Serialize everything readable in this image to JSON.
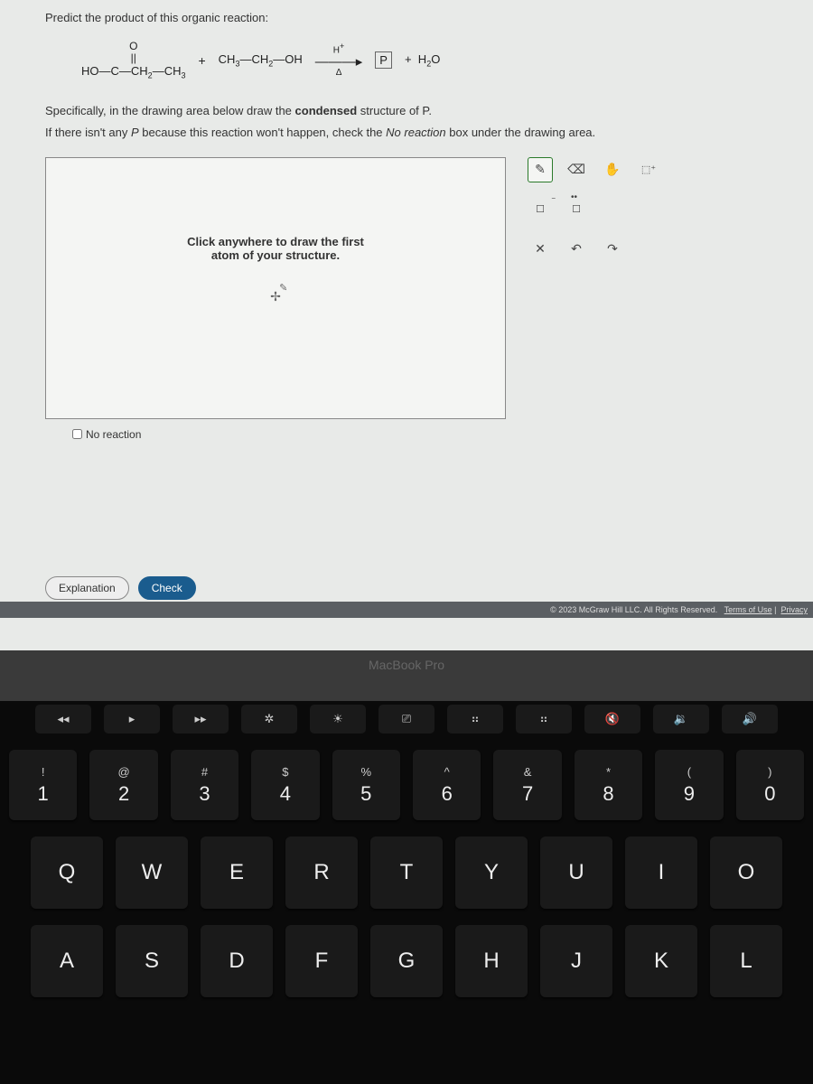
{
  "question": {
    "title": "Predict the product of this organic reaction:",
    "reactant1_top_O": "O",
    "reactant1_dbl": "||",
    "reactant1": "HO — C — CH₂ — CH₃",
    "plus1": "+",
    "reactant2": "CH₃ — CH₂ — OH",
    "arrow_top": "H⁺",
    "arrow": "———▸",
    "arrow_bot": "Δ",
    "product_p": "P",
    "plus2": "+",
    "water": "H₂O",
    "instruction1": "Specifically, in the drawing area below draw the ",
    "instruction1_bold": "condensed",
    "instruction1_tail": " structure of P.",
    "instruction2_head": "If there isn't any ",
    "instruction2_ital": "P",
    "instruction2_mid": " because this reaction won't happen, check the ",
    "instruction2_ital2": "No reaction",
    "instruction2_tail": " box under the drawing area."
  },
  "canvas": {
    "hint_line1": "Click anywhere to draw the first",
    "hint_line2": "atom of your structure.",
    "no_reaction_label": "No reaction"
  },
  "tools": {
    "pencil": "✎",
    "eraser": "⌫",
    "hand": "✋",
    "newbox": "⬚⁺",
    "box": "☐",
    "dotbox": "⬚̈",
    "close": "✕",
    "undo": "↶",
    "redo": "↷"
  },
  "buttons": {
    "explanation": "Explanation",
    "check": "Check"
  },
  "footer": {
    "copyright": "© 2023 McGraw Hill LLC. All Rights Reserved.",
    "terms": "Terms of Use",
    "privacy": "Privacy"
  },
  "hinge": "MacBook Pro",
  "keyboard": {
    "fn": [
      "◂◂",
      "▸",
      "▸▸",
      "✲",
      "☀",
      "⎚",
      "⠶",
      "⠶",
      "🔇",
      "🔉",
      "🔊"
    ],
    "row1": [
      {
        "sym": "!",
        "num": "1"
      },
      {
        "sym": "@",
        "num": "2"
      },
      {
        "sym": "#",
        "num": "3"
      },
      {
        "sym": "$",
        "num": "4"
      },
      {
        "sym": "%",
        "num": "5"
      },
      {
        "sym": "^",
        "num": "6"
      },
      {
        "sym": "&",
        "num": "7"
      },
      {
        "sym": "*",
        "num": "8"
      },
      {
        "sym": "(",
        "num": "9"
      },
      {
        "sym": ")",
        "num": "0"
      }
    ],
    "row2": [
      "Q",
      "W",
      "E",
      "R",
      "T",
      "Y",
      "U",
      "I",
      "O"
    ],
    "row3": [
      "A",
      "S",
      "D",
      "F",
      "G",
      "H",
      "J",
      "K",
      "L"
    ]
  },
  "colors": {
    "screen_bg": "#e8eae8",
    "canvas_bg": "#f4f5f3",
    "check_btn": "#1a5c8e",
    "footer_bg": "#5b5f63",
    "key_bg": "#1a1a1a",
    "tool_active": "#2a7a2a"
  }
}
